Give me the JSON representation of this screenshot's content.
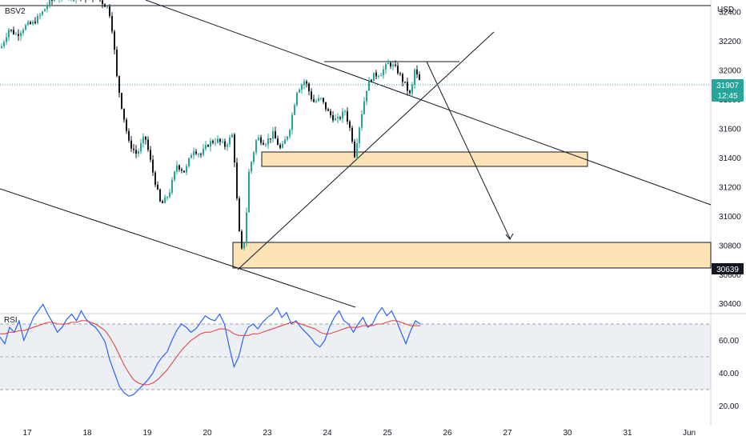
{
  "symbol_label": "BSV2",
  "currency": "USD",
  "price_badge": {
    "price": "31907",
    "countdown": "12:45",
    "color": "#26a69a"
  },
  "support_badge": {
    "price": "30639",
    "color": "#131722"
  },
  "rsi": {
    "label": "RSI",
    "ticks": [
      {
        "value": 60,
        "label": "60.00"
      },
      {
        "value": 40,
        "label": "40.00"
      },
      {
        "value": 20,
        "label": "20.00"
      }
    ]
  },
  "chart_data": {
    "type": "candlestick",
    "currency": "USD",
    "y_ticks": [
      30400,
      30600,
      30800,
      31000,
      31200,
      31400,
      31600,
      31800,
      32000,
      32200,
      32400
    ],
    "ylim": [
      30330,
      32480
    ],
    "last_price": 31907,
    "x_ticks": [
      "17",
      "18",
      "19",
      "20",
      "23",
      "24",
      "25",
      "26",
      "27",
      "30",
      "31",
      "Jun"
    ],
    "zones": [
      {
        "name": "upper-demand-zone",
        "from_price": 31350,
        "to_price": 31460
      },
      {
        "name": "lower-demand-zone",
        "from_price": 30639,
        "to_price": 30820
      }
    ],
    "resistance_level": 32080,
    "target_price": 30830,
    "colors": {
      "up": "#26a69a",
      "down": "#131722",
      "zone_fill": "#fde3b6",
      "rsi_line": "#2962ff",
      "rsi_ma": "#e53935"
    },
    "rsi_series": [
      {
        "name": "RSI",
        "values": [
          52,
          48,
          58,
          55,
          62,
          50,
          57,
          64,
          68,
          72,
          66,
          61,
          55,
          58,
          63,
          66,
          62,
          68,
          63,
          60,
          58,
          54,
          49,
          38,
          30,
          22,
          18,
          16,
          17,
          20,
          23,
          26,
          30,
          36,
          40,
          43,
          50,
          56,
          60,
          58,
          55,
          57,
          61,
          65,
          63,
          62,
          66,
          60,
          46,
          34,
          40,
          52,
          58,
          60,
          57,
          61,
          64,
          66,
          70,
          64,
          67,
          60,
          62,
          58,
          55,
          52,
          48,
          46,
          50,
          58,
          64,
          68,
          62,
          60,
          55,
          60,
          64,
          58,
          60,
          66,
          70,
          65,
          68,
          62,
          55,
          48,
          56,
          62,
          60
        ]
      },
      {
        "name": "MA",
        "values": [
          54,
          54,
          55,
          55,
          56,
          56,
          57,
          58,
          59,
          60,
          61,
          61,
          60,
          60,
          60,
          61,
          61,
          62,
          62,
          61,
          60,
          58,
          56,
          52,
          47,
          41,
          35,
          30,
          26,
          24,
          23,
          23,
          24,
          26,
          29,
          32,
          36,
          40,
          44,
          47,
          50,
          52,
          54,
          55,
          55,
          56,
          57,
          57,
          56,
          54,
          53,
          53,
          53,
          54,
          54,
          55,
          56,
          57,
          58,
          59,
          60,
          61,
          61,
          60,
          59,
          58,
          57,
          55,
          54,
          54,
          55,
          56,
          57,
          58,
          58,
          58,
          59,
          59,
          59,
          60,
          60,
          61,
          62,
          62,
          61,
          60,
          59,
          59,
          59
        ]
      }
    ]
  }
}
